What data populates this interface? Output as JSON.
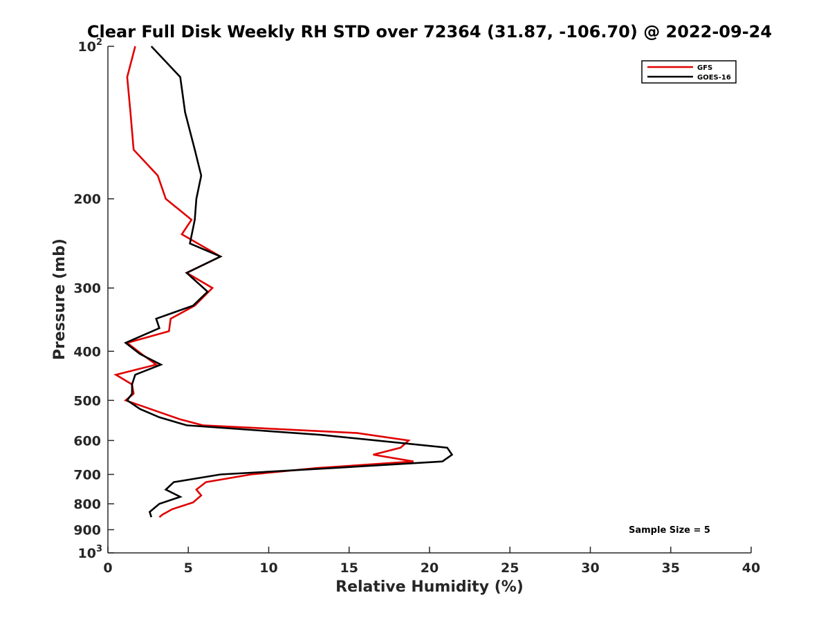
{
  "chart_data": {
    "type": "line",
    "title": "Clear Full Disk Weekly RH STD over 72364 (31.87, -106.70) @ 2022-09-24",
    "xlabel": "Relative Humidity (%)",
    "ylabel": "Pressure (mb)",
    "xlim": [
      0,
      40
    ],
    "ylim": [
      100,
      1000
    ],
    "yscale": "log",
    "y_reversed": true,
    "x_ticks": [
      {
        "value": 0,
        "label": "0"
      },
      {
        "value": 5,
        "label": "5"
      },
      {
        "value": 10,
        "label": "10"
      },
      {
        "value": 15,
        "label": "15"
      },
      {
        "value": 20,
        "label": "20"
      },
      {
        "value": 25,
        "label": "25"
      },
      {
        "value": 30,
        "label": "30"
      },
      {
        "value": 35,
        "label": "35"
      },
      {
        "value": 40,
        "label": "40"
      }
    ],
    "y_ticks": [
      {
        "value": 100,
        "label": "10",
        "exp": "2"
      },
      {
        "value": 200,
        "label": "200"
      },
      {
        "value": 300,
        "label": "300"
      },
      {
        "value": 400,
        "label": "400"
      },
      {
        "value": 500,
        "label": "500"
      },
      {
        "value": 600,
        "label": "600"
      },
      {
        "value": 700,
        "label": "700"
      },
      {
        "value": 800,
        "label": "800"
      },
      {
        "value": 900,
        "label": "900"
      },
      {
        "value": 1000,
        "label": "10",
        "exp": "3"
      }
    ],
    "grid": false,
    "legend_position": "top-right",
    "series": [
      {
        "name": "GFS",
        "color": "#e00000",
        "points": [
          [
            1.7,
            100
          ],
          [
            1.2,
            115
          ],
          [
            1.4,
            135
          ],
          [
            1.6,
            160
          ],
          [
            3.1,
            180
          ],
          [
            3.6,
            200
          ],
          [
            5.2,
            220
          ],
          [
            4.6,
            235
          ],
          [
            7.0,
            260
          ],
          [
            4.9,
            280
          ],
          [
            6.5,
            300
          ],
          [
            5.4,
            325
          ],
          [
            3.9,
            345
          ],
          [
            3.8,
            365
          ],
          [
            1.2,
            385
          ],
          [
            2.1,
            405
          ],
          [
            3.0,
            425
          ],
          [
            0.5,
            445
          ],
          [
            1.5,
            465
          ],
          [
            1.6,
            485
          ],
          [
            1.1,
            500
          ],
          [
            4.5,
            545
          ],
          [
            5.9,
            560
          ],
          [
            15.5,
            580
          ],
          [
            18.7,
            600
          ],
          [
            18.2,
            620
          ],
          [
            16.5,
            640
          ],
          [
            19.0,
            660
          ],
          [
            13.0,
            680
          ],
          [
            8.9,
            700
          ],
          [
            6.1,
            725
          ],
          [
            5.5,
            750
          ],
          [
            5.8,
            770
          ],
          [
            5.3,
            795
          ],
          [
            4.0,
            820
          ],
          [
            3.4,
            840
          ],
          [
            3.2,
            850
          ]
        ]
      },
      {
        "name": "GOES-16",
        "color": "#000000",
        "points": [
          [
            2.7,
            100
          ],
          [
            4.5,
            115
          ],
          [
            4.8,
            135
          ],
          [
            5.4,
            160
          ],
          [
            5.8,
            180
          ],
          [
            5.5,
            200
          ],
          [
            5.4,
            220
          ],
          [
            5.1,
            245
          ],
          [
            7.0,
            260
          ],
          [
            4.9,
            280
          ],
          [
            6.2,
            305
          ],
          [
            5.3,
            325
          ],
          [
            3.0,
            345
          ],
          [
            3.2,
            360
          ],
          [
            1.1,
            385
          ],
          [
            2.0,
            405
          ],
          [
            3.3,
            425
          ],
          [
            1.7,
            445
          ],
          [
            1.5,
            465
          ],
          [
            1.5,
            485
          ],
          [
            1.2,
            500
          ],
          [
            2.0,
            520
          ],
          [
            3.2,
            540
          ],
          [
            4.9,
            560
          ],
          [
            13.3,
            585
          ],
          [
            21.1,
            620
          ],
          [
            21.4,
            640
          ],
          [
            20.8,
            660
          ],
          [
            14.0,
            680
          ],
          [
            7.0,
            700
          ],
          [
            4.1,
            725
          ],
          [
            3.6,
            750
          ],
          [
            4.5,
            775
          ],
          [
            3.2,
            800
          ],
          [
            2.6,
            830
          ],
          [
            2.7,
            850
          ]
        ]
      }
    ],
    "annotation": "Sample Size = 5"
  }
}
